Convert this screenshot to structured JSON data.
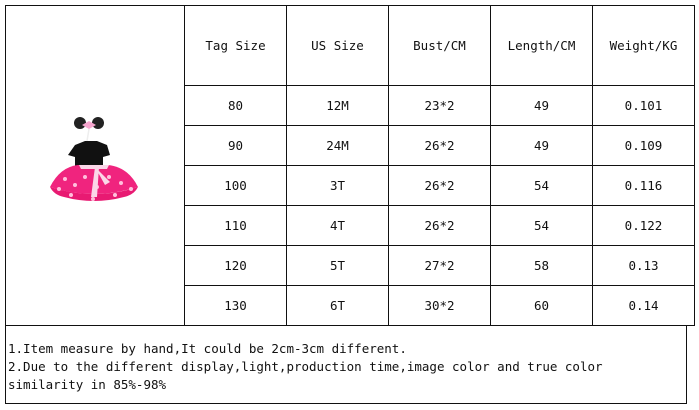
{
  "table": {
    "headers": [
      "Tag Size",
      "US Size",
      "Bust/CM",
      "Length/CM",
      "Weight/KG"
    ],
    "rows": [
      [
        "80",
        "12M",
        "23*2",
        "49",
        "0.101"
      ],
      [
        "90",
        "24M",
        "26*2",
        "49",
        "0.109"
      ],
      [
        "100",
        "3T",
        "26*2",
        "54",
        "0.116"
      ],
      [
        "110",
        "4T",
        "26*2",
        "54",
        "0.122"
      ],
      [
        "120",
        "5T",
        "27*2",
        "58",
        "0.13"
      ],
      [
        "130",
        "6T",
        "30*2",
        "60",
        "0.14"
      ]
    ]
  },
  "product_image": "pink polka-dot tutu dress with black top and mouse-ear headband",
  "notes": [
    "1.Item measure by hand,It could be 2cm-3cm different.",
    "2.Due to the different display,light,production time,image color and true color similarity in 85%-98%"
  ],
  "colors": {
    "skirt": "#f0247e",
    "dots": "#ffc0dc",
    "top": "#111111",
    "border": "#111111"
  }
}
